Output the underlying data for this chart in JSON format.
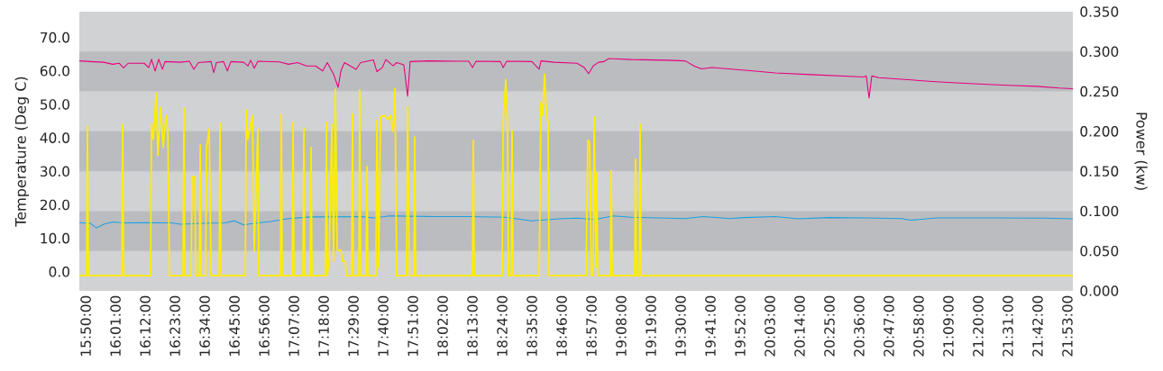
{
  "chart_data": {
    "type": "line",
    "ylabel": "Temperature (Deg C)",
    "y2label": "Power (kw)",
    "xlim": [
      15.794,
      21.917
    ],
    "ylim": [
      -5.7,
      77.7
    ],
    "y2lim": [
      0,
      0.35
    ],
    "xticks": [
      {
        "value": 15.8333,
        "label": "15:50:00"
      },
      {
        "value": 16.0167,
        "label": "16:01:00"
      },
      {
        "value": 16.2,
        "label": "16:12:00"
      },
      {
        "value": 16.3833,
        "label": "16:23:00"
      },
      {
        "value": 16.5667,
        "label": "16:34:00"
      },
      {
        "value": 16.75,
        "label": "16:45:00"
      },
      {
        "value": 16.9333,
        "label": "16:56:00"
      },
      {
        "value": 17.1167,
        "label": "17:07:00"
      },
      {
        "value": 17.3,
        "label": "17:18:00"
      },
      {
        "value": 17.4833,
        "label": "17:29:00"
      },
      {
        "value": 17.6667,
        "label": "17:40:00"
      },
      {
        "value": 17.85,
        "label": "17:51:00"
      },
      {
        "value": 18.0333,
        "label": "18:02:00"
      },
      {
        "value": 18.2167,
        "label": "18:13:00"
      },
      {
        "value": 18.4,
        "label": "18:24:00"
      },
      {
        "value": 18.5833,
        "label": "18:35:00"
      },
      {
        "value": 18.7667,
        "label": "18:46:00"
      },
      {
        "value": 18.95,
        "label": "18:57:00"
      },
      {
        "value": 19.1333,
        "label": "19:08:00"
      },
      {
        "value": 19.3167,
        "label": "19:19:00"
      },
      {
        "value": 19.5,
        "label": "19:30:00"
      },
      {
        "value": 19.6833,
        "label": "19:41:00"
      },
      {
        "value": 19.8667,
        "label": "19:52:00"
      },
      {
        "value": 20.05,
        "label": "20:03:00"
      },
      {
        "value": 20.2333,
        "label": "20:14:00"
      },
      {
        "value": 20.4167,
        "label": "20:25:00"
      },
      {
        "value": 20.6,
        "label": "20:36:00"
      },
      {
        "value": 20.7833,
        "label": "20:47:00"
      },
      {
        "value": 20.9667,
        "label": "20:58:00"
      },
      {
        "value": 21.15,
        "label": "21:09:00"
      },
      {
        "value": 21.3333,
        "label": "21:20:00"
      },
      {
        "value": 21.5167,
        "label": "21:31:00"
      },
      {
        "value": 21.7,
        "label": "21:42:00"
      },
      {
        "value": 21.8833,
        "label": "21:53:00"
      }
    ],
    "yticks": [
      {
        "value": 0,
        "label": "0.0"
      },
      {
        "value": 10,
        "label": "10.0"
      },
      {
        "value": 20,
        "label": "20.0"
      },
      {
        "value": 30,
        "label": "30.0"
      },
      {
        "value": 40,
        "label": "40.0"
      },
      {
        "value": 50,
        "label": "50.0"
      },
      {
        "value": 60,
        "label": "60.0"
      },
      {
        "value": 70,
        "label": "70.0"
      }
    ],
    "y2ticks": [
      {
        "value": 0,
        "label": "0.000"
      },
      {
        "value": 0.05,
        "label": "0.050"
      },
      {
        "value": 0.1,
        "label": "0.100"
      },
      {
        "value": 0.15,
        "label": "0.150"
      },
      {
        "value": 0.2,
        "label": "0.200"
      },
      {
        "value": 0.25,
        "label": "0.250"
      },
      {
        "value": 0.3,
        "label": "0.300"
      },
      {
        "value": 0.35,
        "label": "0.350"
      }
    ],
    "bands": [
      {
        "axis": "y2",
        "from": 0.05,
        "to": 0.1,
        "color": "#bbbcbf"
      },
      {
        "axis": "y2",
        "from": 0.15,
        "to": 0.2,
        "color": "#bbbcbf"
      },
      {
        "axis": "y2",
        "from": 0.25,
        "to": 0.3,
        "color": "#bbbcbf"
      }
    ],
    "line_style": "solid",
    "series": [
      {
        "color": "#e6007e",
        "axis": "y",
        "x": [
          15.794,
          15.861,
          15.944,
          16.0,
          16.039,
          16.067,
          16.094,
          16.194,
          16.222,
          16.239,
          16.261,
          16.283,
          16.306,
          16.322,
          16.417,
          16.472,
          16.5,
          16.528,
          16.606,
          16.622,
          16.639,
          16.683,
          16.706,
          16.728,
          16.806,
          16.833,
          16.85,
          16.872,
          16.894,
          17.028,
          17.083,
          17.139,
          17.194,
          17.25,
          17.294,
          17.322,
          17.361,
          17.389,
          17.406,
          17.428,
          17.5,
          17.528,
          17.606,
          17.628,
          17.661,
          17.683,
          17.728,
          17.75,
          17.794,
          17.817,
          17.833,
          17.944,
          18.194,
          18.217,
          18.239,
          18.389,
          18.406,
          18.428,
          18.583,
          18.628,
          18.639,
          18.722,
          18.861,
          18.906,
          18.933,
          18.961,
          18.994,
          19.028,
          19.056,
          19.194,
          19.417,
          19.528,
          19.583,
          19.628,
          19.694,
          19.944,
          20.083,
          20.306,
          20.628,
          20.644,
          20.661,
          20.678,
          20.722,
          20.861,
          21.072,
          21.306,
          21.517,
          21.694,
          21.833,
          21.917
        ],
        "values": [
          63.0,
          62.8,
          62.6,
          62.0,
          62.3,
          60.9,
          62.3,
          62.3,
          61.0,
          63.5,
          60.0,
          63.5,
          60.5,
          62.8,
          62.6,
          62.9,
          60.5,
          62.5,
          62.8,
          59.5,
          62.5,
          62.8,
          60.0,
          62.8,
          62.6,
          61.5,
          63.2,
          60.8,
          62.9,
          62.7,
          62.0,
          62.5,
          61.5,
          61.5,
          60.0,
          62.5,
          59.0,
          55.1,
          60.0,
          62.5,
          60.5,
          62.5,
          63.3,
          59.8,
          61.0,
          63.4,
          61.5,
          62.5,
          61.8,
          52.4,
          62.8,
          63.0,
          62.9,
          61.0,
          62.9,
          62.8,
          61.0,
          62.9,
          62.8,
          60.5,
          63.0,
          62.6,
          62.3,
          61.0,
          59.2,
          61.5,
          62.6,
          62.8,
          63.7,
          63.4,
          63.2,
          63.0,
          61.5,
          60.6,
          61.0,
          60.0,
          59.4,
          58.9,
          58.2,
          58.5,
          51.9,
          58.5,
          58.0,
          57.5,
          56.8,
          56.2,
          55.7,
          55.4,
          54.9,
          54.7
        ]
      },
      {
        "color": "#1ba1e2",
        "axis": "y",
        "x": [
          15.794,
          15.861,
          15.9,
          15.944,
          16.0,
          16.067,
          16.194,
          16.361,
          16.417,
          16.556,
          16.694,
          16.75,
          16.806,
          16.861,
          16.972,
          17.083,
          17.222,
          17.333,
          17.528,
          17.611,
          17.706,
          17.833,
          17.972,
          18.194,
          18.417,
          18.583,
          18.75,
          18.861,
          18.972,
          19.083,
          19.194,
          19.361,
          19.528,
          19.639,
          19.806,
          19.889,
          20.083,
          20.222,
          20.417,
          20.639,
          20.861,
          20.917,
          21.083,
          21.417,
          21.75,
          21.917
        ],
        "values": [
          14.7,
          14.5,
          13.1,
          14.2,
          14.9,
          14.6,
          14.7,
          14.6,
          14.2,
          14.5,
          14.6,
          15.2,
          14.0,
          14.4,
          15.0,
          15.9,
          16.4,
          16.4,
          16.5,
          16.1,
          16.7,
          16.6,
          16.5,
          16.5,
          16.3,
          15.2,
          15.8,
          16.0,
          15.6,
          16.7,
          16.3,
          16.1,
          15.9,
          16.5,
          15.9,
          16.2,
          16.5,
          15.8,
          16.2,
          16.1,
          15.9,
          15.4,
          16.1,
          16.1,
          16.0,
          15.8
        ]
      },
      {
        "color": "#ffed00",
        "axis": "y2",
        "x": [
          15.794,
          15.839,
          15.844,
          15.85,
          16.056,
          16.061,
          16.067,
          16.233,
          16.239,
          16.25,
          16.267,
          16.278,
          16.294,
          16.311,
          16.328,
          16.339,
          16.35,
          16.433,
          16.439,
          16.444,
          16.483,
          16.489,
          16.506,
          16.511,
          16.533,
          16.539,
          16.544,
          16.572,
          16.578,
          16.594,
          16.606,
          16.656,
          16.661,
          16.667,
          16.817,
          16.822,
          16.833,
          16.844,
          16.861,
          16.872,
          16.894,
          16.9,
          17.033,
          17.039,
          17.044,
          17.106,
          17.111,
          17.117,
          17.172,
          17.178,
          17.183,
          17.217,
          17.222,
          17.228,
          17.311,
          17.317,
          17.322,
          17.333,
          17.35,
          17.361,
          17.372,
          17.383,
          17.406,
          17.417,
          17.433,
          17.439,
          17.472,
          17.478,
          17.483,
          17.517,
          17.522,
          17.528,
          17.561,
          17.567,
          17.572,
          17.622,
          17.628,
          17.639,
          17.65,
          17.672,
          17.694,
          17.711,
          17.728,
          17.739,
          17.75,
          17.811,
          17.817,
          17.828,
          17.856,
          17.861,
          17.867,
          18.217,
          18.222,
          18.228,
          18.4,
          18.406,
          18.422,
          18.433,
          18.439,
          18.456,
          18.461,
          18.467,
          18.628,
          18.639,
          18.65,
          18.661,
          18.672,
          18.683,
          18.689,
          18.917,
          18.928,
          18.939,
          18.95,
          18.961,
          18.967,
          18.978,
          18.983,
          18.989,
          19.067,
          19.072,
          19.078,
          19.217,
          19.222,
          19.228,
          19.244,
          19.25,
          19.256,
          21.917
        ],
        "values": [
          0.019,
          0.019,
          0.207,
          0.019,
          0.019,
          0.209,
          0.019,
          0.019,
          0.21,
          0.19,
          0.248,
          0.17,
          0.23,
          0.18,
          0.22,
          0.2,
          0.019,
          0.019,
          0.229,
          0.019,
          0.019,
          0.143,
          0.143,
          0.019,
          0.019,
          0.183,
          0.019,
          0.019,
          0.18,
          0.203,
          0.019,
          0.019,
          0.21,
          0.019,
          0.019,
          0.227,
          0.19,
          0.203,
          0.22,
          0.05,
          0.203,
          0.019,
          0.019,
          0.222,
          0.019,
          0.019,
          0.211,
          0.019,
          0.019,
          0.204,
          0.019,
          0.019,
          0.18,
          0.019,
          0.019,
          0.211,
          0.019,
          0.037,
          0.209,
          0.037,
          0.253,
          0.051,
          0.051,
          0.037,
          0.037,
          0.019,
          0.019,
          0.222,
          0.019,
          0.019,
          0.252,
          0.019,
          0.019,
          0.156,
          0.019,
          0.019,
          0.214,
          0.03,
          0.218,
          0.22,
          0.215,
          0.22,
          0.2,
          0.254,
          0.019,
          0.019,
          0.231,
          0.019,
          0.019,
          0.193,
          0.019,
          0.019,
          0.189,
          0.019,
          0.019,
          0.21,
          0.265,
          0.21,
          0.019,
          0.019,
          0.201,
          0.019,
          0.019,
          0.237,
          0.22,
          0.272,
          0.222,
          0.21,
          0.019,
          0.019,
          0.189,
          0.187,
          0.019,
          0.019,
          0.218,
          0.03,
          0.148,
          0.019,
          0.019,
          0.151,
          0.019,
          0.019,
          0.165,
          0.019,
          0.019,
          0.209,
          0.019,
          0.019
        ]
      }
    ]
  }
}
